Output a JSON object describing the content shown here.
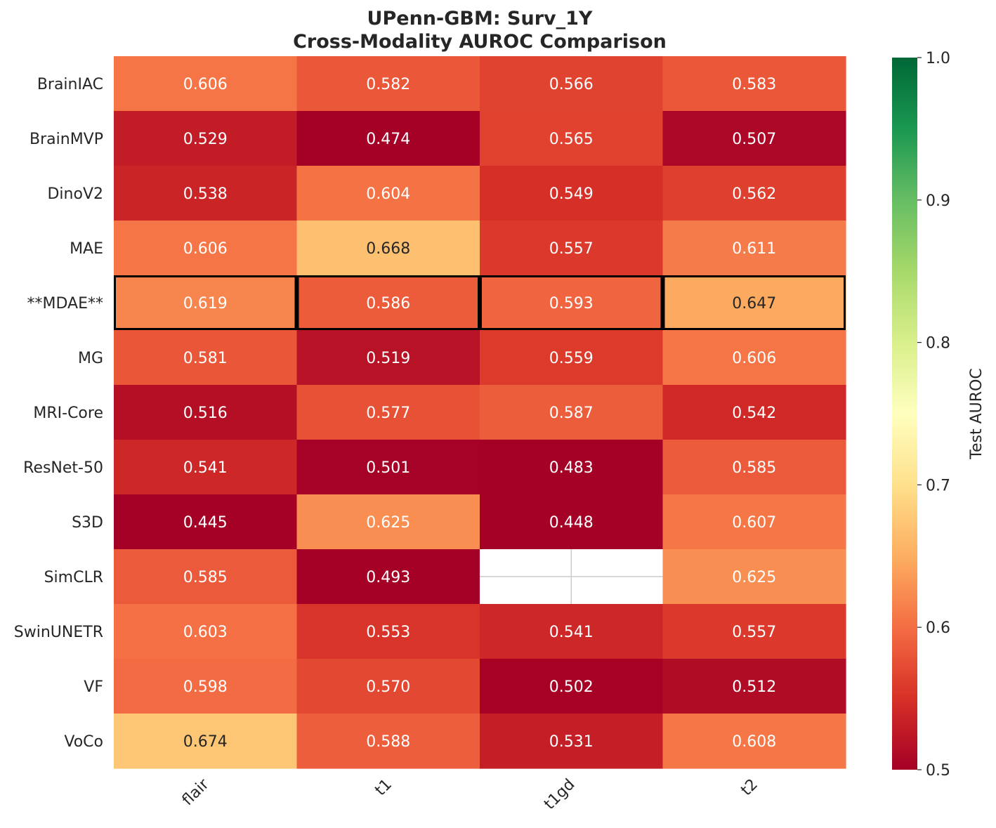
{
  "chart_data": {
    "type": "heatmap",
    "title_lines": [
      "UPenn-GBM: Surv_1Y",
      "Cross-Modality AUROC Comparison"
    ],
    "x_categories": [
      "flair",
      "t1",
      "t1gd",
      "t2"
    ],
    "y_categories": [
      "BrainIAC",
      "BrainMVP",
      "DinoV2",
      "MAE",
      "**MDAE**",
      "MG",
      "MRI-Core",
      "ResNet-50",
      "S3D",
      "SimCLR",
      "SwinUNETR",
      "VF",
      "VoCo"
    ],
    "values": [
      [
        0.606,
        0.582,
        0.566,
        0.583
      ],
      [
        0.529,
        0.474,
        0.565,
        0.507
      ],
      [
        0.538,
        0.604,
        0.549,
        0.562
      ],
      [
        0.606,
        0.668,
        0.557,
        0.611
      ],
      [
        0.619,
        0.586,
        0.593,
        0.647
      ],
      [
        0.581,
        0.519,
        0.559,
        0.606
      ],
      [
        0.516,
        0.577,
        0.587,
        0.542
      ],
      [
        0.541,
        0.501,
        0.483,
        0.585
      ],
      [
        0.445,
        0.625,
        0.448,
        0.607
      ],
      [
        0.585,
        0.493,
        null,
        0.625
      ],
      [
        0.603,
        0.553,
        0.541,
        0.557
      ],
      [
        0.598,
        0.57,
        0.502,
        0.512
      ],
      [
        0.674,
        0.588,
        0.531,
        0.608
      ]
    ],
    "value_labels": [
      [
        "0.606",
        "0.582",
        "0.566",
        "0.583"
      ],
      [
        "0.529",
        "0.474",
        "0.565",
        "0.507"
      ],
      [
        "0.538",
        "0.604",
        "0.549",
        "0.562"
      ],
      [
        "0.606",
        "0.668",
        "0.557",
        "0.611"
      ],
      [
        "0.619",
        "0.586",
        "0.593",
        "0.647"
      ],
      [
        "0.581",
        "0.519",
        "0.559",
        "0.606"
      ],
      [
        "0.516",
        "0.577",
        "0.587",
        "0.542"
      ],
      [
        "0.541",
        "0.501",
        "0.483",
        "0.585"
      ],
      [
        "0.445",
        "0.625",
        "0.448",
        "0.607"
      ],
      [
        "0.585",
        "0.493",
        "",
        "0.625"
      ],
      [
        "0.603",
        "0.553",
        "0.541",
        "0.557"
      ],
      [
        "0.598",
        "0.570",
        "0.502",
        "0.512"
      ],
      [
        "0.674",
        "0.588",
        "0.531",
        "0.608"
      ]
    ],
    "highlight_row": "**MDAE**",
    "colormap": "RdYlGn",
    "vmin": 0.5,
    "vmax": 1.0,
    "colorbar": {
      "label": "Test AUROC",
      "ticks": [
        0.5,
        0.6,
        0.7,
        0.8,
        0.9,
        1.0
      ],
      "tick_labels": [
        "0.5",
        "0.6",
        "0.7",
        "0.8",
        "0.9",
        "1.0"
      ]
    },
    "colors": {
      "title": "#262626",
      "text_dark": "#262626",
      "text_light": "#ffffff",
      "highlight_border": "#000000",
      "missing_cell": "#ffffff",
      "missing_grid": "#cccccc"
    }
  }
}
